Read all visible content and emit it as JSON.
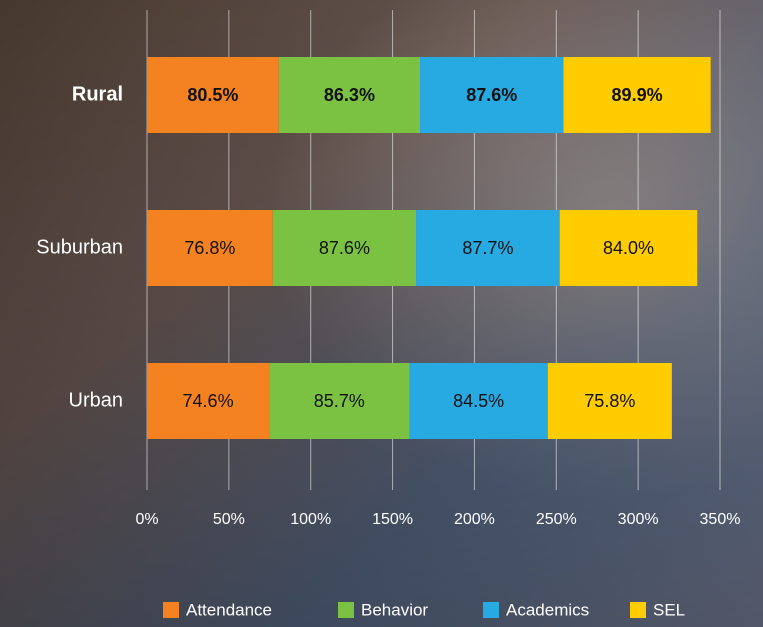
{
  "chart_data": {
    "type": "stacked-bar-horizontal",
    "categories": [
      "Rural",
      "Suburban",
      "Urban"
    ],
    "series": [
      {
        "name": "Attendance",
        "color": "#f58220",
        "values": [
          80.5,
          76.8,
          74.6
        ],
        "value_labels": [
          "80.5%",
          "76.8%",
          "74.6%"
        ]
      },
      {
        "name": "Behavior",
        "color": "#7cc242",
        "values": [
          86.3,
          87.6,
          85.7
        ],
        "value_labels": [
          "86.3%",
          "87.6%",
          "85.7%"
        ]
      },
      {
        "name": "Academics",
        "color": "#27aae1",
        "values": [
          87.6,
          87.7,
          84.5
        ],
        "value_labels": [
          "87.6%",
          "87.7%",
          "84.5%"
        ]
      },
      {
        "name": "SEL",
        "color": "#ffcc00",
        "values": [
          89.9,
          84.0,
          75.8
        ],
        "value_labels": [
          "89.9%",
          "84.0%",
          "75.8%"
        ]
      }
    ],
    "xlim": [
      0,
      350
    ],
    "xticks": [
      {
        "value": 0,
        "label": "0%"
      },
      {
        "value": 50,
        "label": "50%"
      },
      {
        "value": 100,
        "label": "100%"
      },
      {
        "value": 150,
        "label": "150%"
      },
      {
        "value": 200,
        "label": "200%"
      },
      {
        "value": 250,
        "label": "250%"
      },
      {
        "value": 300,
        "label": "300%"
      },
      {
        "value": 350,
        "label": "350%"
      }
    ],
    "grid": true,
    "legend": "bottom"
  }
}
